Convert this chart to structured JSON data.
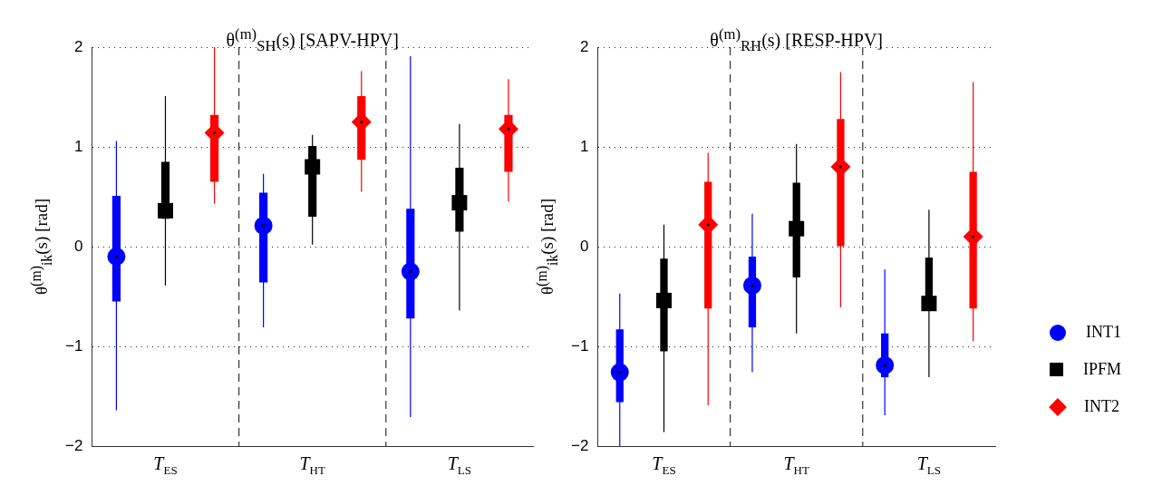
{
  "chart_data": [
    {
      "type": "box",
      "title": "θ$^{(m)}$$_{SH}$(s) [SAPV-HPV]",
      "ylabel": "θ$^{(m)}$$_{ik}$(s) [rad]",
      "categories": [
        "T$_{ES}$",
        "T$_{HT}$",
        "T$_{LS}$"
      ],
      "ylim": [
        -2,
        2
      ],
      "yticks": [
        -2,
        -1,
        0,
        1,
        2
      ],
      "grid": "y",
      "series": [
        {
          "color": "#0000ff",
          "marker": "circle",
          "boxes": [
            {
              "low": -1.64,
              "q1": -0.55,
              "median": -0.1,
              "q3": 0.51,
              "high": 1.06
            },
            {
              "low": -0.81,
              "q1": -0.36,
              "median": 0.21,
              "q3": 0.54,
              "high": 0.73
            },
            {
              "low": -1.71,
              "q1": -0.72,
              "median": -0.25,
              "q3": 0.38,
              "high": 1.91
            }
          ]
        },
        {
          "color": "#000000",
          "marker": "square",
          "boxes": [
            {
              "low": -0.39,
              "q1": 0.28,
              "median": 0.36,
              "q3": 0.85,
              "high": 1.51
            },
            {
              "low": 0.02,
              "q1": 0.3,
              "median": 0.8,
              "q3": 1.01,
              "high": 1.12
            },
            {
              "low": -0.64,
              "q1": 0.15,
              "median": 0.44,
              "q3": 0.79,
              "high": 1.23
            }
          ]
        },
        {
          "color": "#ff0000",
          "marker": "diamond",
          "boxes": [
            {
              "low": 0.43,
              "q1": 0.65,
              "median": 1.14,
              "q3": 1.32,
              "high": 2.0
            },
            {
              "low": 0.55,
              "q1": 0.87,
              "median": 1.25,
              "q3": 1.51,
              "high": 1.76
            },
            {
              "low": 0.45,
              "q1": 0.75,
              "median": 1.18,
              "q3": 1.32,
              "high": 1.68
            }
          ]
        }
      ]
    },
    {
      "type": "box",
      "title": "θ$^{(m)}$$_{RH}$(s) [RESP-HPV]",
      "ylabel": "θ$^{(m)}$$_{ik}$(s) [rad]",
      "categories": [
        "T$_{ES}$",
        "T$_{HT}$",
        "T$_{LS}$"
      ],
      "ylim": [
        -2,
        2
      ],
      "yticks": [
        -2,
        -1,
        0,
        1,
        2
      ],
      "grid": "y",
      "legend": "right",
      "series": [
        {
          "name": "INT1",
          "color": "#0000ff",
          "marker": "circle",
          "boxes": [
            {
              "low": -2.0,
              "q1": -1.56,
              "median": -1.26,
              "q3": -0.83,
              "high": -0.47
            },
            {
              "low": -1.26,
              "q1": -0.81,
              "median": -0.39,
              "q3": -0.1,
              "high": 0.33
            },
            {
              "low": -1.69,
              "q1": -1.31,
              "median": -1.19,
              "q3": -0.87,
              "high": -0.23
            }
          ]
        },
        {
          "name": "IPFM",
          "color": "#000000",
          "marker": "square",
          "boxes": [
            {
              "low": -1.86,
              "q1": -1.05,
              "median": -0.54,
              "q3": -0.12,
              "high": 0.22
            },
            {
              "low": -0.87,
              "q1": -0.31,
              "median": 0.18,
              "q3": 0.64,
              "high": 1.03
            },
            {
              "low": -1.31,
              "q1": -0.64,
              "median": -0.57,
              "q3": -0.11,
              "high": 0.37
            }
          ]
        },
        {
          "name": "INT2",
          "color": "#ff0000",
          "marker": "diamond",
          "boxes": [
            {
              "low": -1.59,
              "q1": -0.62,
              "median": 0.22,
              "q3": 0.65,
              "high": 0.94
            },
            {
              "low": -0.61,
              "q1": 0.0,
              "median": 0.8,
              "q3": 1.28,
              "high": 1.75
            },
            {
              "low": -0.95,
              "q1": -0.62,
              "median": 0.1,
              "q3": 0.75,
              "high": 1.65
            }
          ]
        }
      ]
    }
  ]
}
